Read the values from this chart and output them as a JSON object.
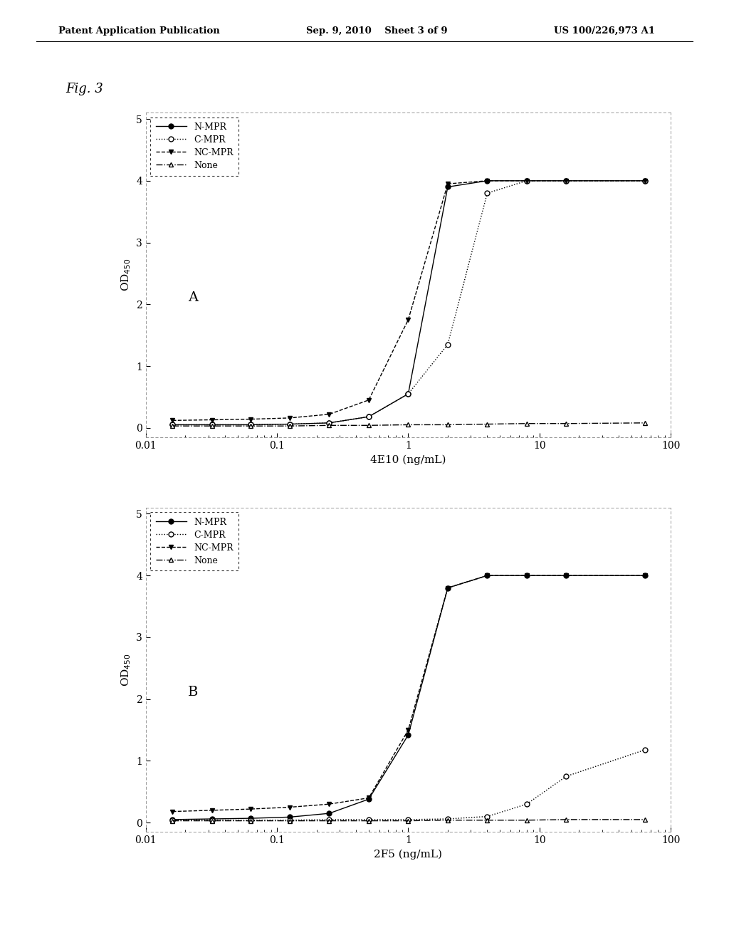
{
  "panel_A": {
    "title": "A",
    "xlabel": "4E10 (ng/mL)",
    "ylabel": "OD$_{450}$",
    "xlim": [
      0.01,
      100
    ],
    "ylim": [
      -0.1,
      5
    ],
    "yticks": [
      0,
      1,
      2,
      3,
      4,
      5
    ],
    "series": {
      "N-MPR": {
        "x": [
          0.016,
          0.032,
          0.063,
          0.125,
          0.25,
          0.5,
          1.0,
          2.0,
          4.0,
          8.0,
          16.0,
          64.0
        ],
        "y": [
          0.05,
          0.05,
          0.05,
          0.06,
          0.08,
          0.18,
          0.55,
          3.9,
          4.0,
          4.0,
          4.0,
          4.0
        ],
        "linestyle": "-",
        "marker": "o",
        "markerfacecolor": "black",
        "markeredgecolor": "black",
        "color": "black",
        "markersize": 5
      },
      "C-MPR": {
        "x": [
          0.016,
          0.032,
          0.063,
          0.125,
          0.25,
          0.5,
          1.0,
          2.0,
          4.0,
          8.0,
          16.0,
          64.0
        ],
        "y": [
          0.05,
          0.05,
          0.05,
          0.06,
          0.08,
          0.18,
          0.55,
          1.35,
          3.8,
          4.0,
          4.0,
          4.0
        ],
        "linestyle": ":",
        "marker": "o",
        "markerfacecolor": "white",
        "markeredgecolor": "black",
        "color": "black",
        "markersize": 5
      },
      "NC-MPR": {
        "x": [
          0.016,
          0.032,
          0.063,
          0.125,
          0.25,
          0.5,
          1.0,
          2.0,
          4.0,
          8.0,
          16.0,
          64.0
        ],
        "y": [
          0.12,
          0.13,
          0.14,
          0.16,
          0.22,
          0.45,
          1.75,
          3.95,
          4.0,
          4.0,
          4.0,
          4.0
        ],
        "linestyle": "--",
        "marker": "v",
        "markerfacecolor": "black",
        "markeredgecolor": "black",
        "color": "black",
        "markersize": 5
      },
      "None": {
        "x": [
          0.016,
          0.032,
          0.063,
          0.125,
          0.25,
          0.5,
          1.0,
          2.0,
          4.0,
          8.0,
          16.0,
          64.0
        ],
        "y": [
          0.03,
          0.03,
          0.03,
          0.03,
          0.04,
          0.04,
          0.05,
          0.05,
          0.06,
          0.07,
          0.07,
          0.08
        ],
        "linestyle": "-.",
        "marker": "^",
        "markerfacecolor": "white",
        "markeredgecolor": "black",
        "color": "black",
        "markersize": 5
      }
    }
  },
  "panel_B": {
    "title": "B",
    "xlabel": "2F5 (ng/mL)",
    "ylabel": "OD$_{450}$",
    "xlim": [
      0.01,
      100
    ],
    "ylim": [
      -0.1,
      5
    ],
    "yticks": [
      0,
      1,
      2,
      3,
      4,
      5
    ],
    "series": {
      "N-MPR": {
        "x": [
          0.016,
          0.032,
          0.063,
          0.125,
          0.25,
          0.5,
          1.0,
          2.0,
          4.0,
          8.0,
          16.0,
          64.0
        ],
        "y": [
          0.05,
          0.06,
          0.07,
          0.09,
          0.15,
          0.38,
          1.42,
          3.8,
          4.0,
          4.0,
          4.0,
          4.0
        ],
        "linestyle": "-",
        "marker": "o",
        "markerfacecolor": "black",
        "markeredgecolor": "black",
        "color": "black",
        "markersize": 5
      },
      "C-MPR": {
        "x": [
          0.016,
          0.032,
          0.063,
          0.125,
          0.25,
          0.5,
          1.0,
          2.0,
          4.0,
          8.0,
          16.0,
          64.0
        ],
        "y": [
          0.04,
          0.04,
          0.04,
          0.04,
          0.05,
          0.05,
          0.05,
          0.06,
          0.1,
          0.3,
          0.75,
          1.18
        ],
        "linestyle": ":",
        "marker": "o",
        "markerfacecolor": "white",
        "markeredgecolor": "black",
        "color": "black",
        "markersize": 5
      },
      "NC-MPR": {
        "x": [
          0.016,
          0.032,
          0.063,
          0.125,
          0.25,
          0.5,
          1.0,
          2.0,
          4.0,
          8.0,
          16.0,
          64.0
        ],
        "y": [
          0.18,
          0.2,
          0.22,
          0.25,
          0.3,
          0.4,
          1.5,
          3.8,
          4.0,
          4.0,
          4.0,
          4.0
        ],
        "linestyle": "--",
        "marker": "v",
        "markerfacecolor": "black",
        "markeredgecolor": "black",
        "color": "black",
        "markersize": 5
      },
      "None": {
        "x": [
          0.016,
          0.032,
          0.063,
          0.125,
          0.25,
          0.5,
          1.0,
          2.0,
          4.0,
          8.0,
          16.0,
          64.0
        ],
        "y": [
          0.03,
          0.03,
          0.03,
          0.03,
          0.03,
          0.03,
          0.03,
          0.04,
          0.04,
          0.04,
          0.05,
          0.05
        ],
        "linestyle": "-.",
        "marker": "^",
        "markerfacecolor": "white",
        "markeredgecolor": "black",
        "color": "black",
        "markersize": 5
      }
    }
  },
  "background_color": "#ffffff",
  "plot_background": "#ffffff",
  "header": {
    "left": "Patent Application Publication",
    "center": "Sep. 9, 2010    Sheet 3 of 9",
    "right": "US 100/226,973 A1"
  }
}
